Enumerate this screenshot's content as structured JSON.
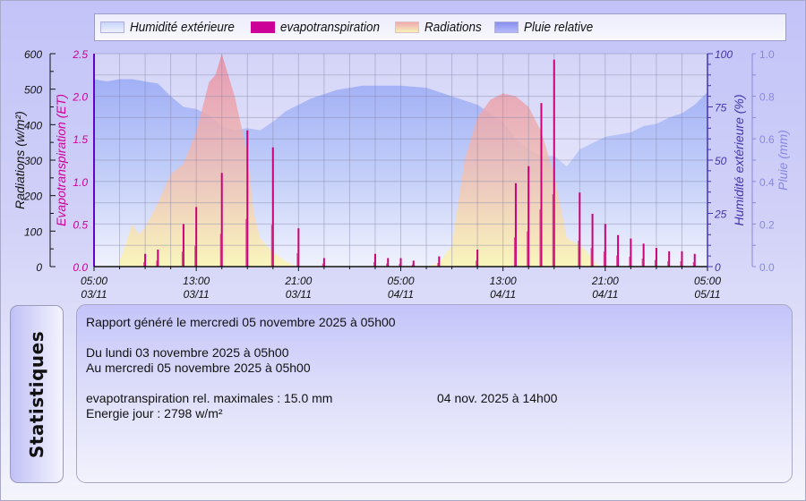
{
  "legend": {
    "items": [
      {
        "label": "Humidité extérieure",
        "color": "#dfe6fb"
      },
      {
        "label": "evapotranspiration",
        "color": "#cc0099"
      },
      {
        "label": "Radiations",
        "color": "#f2c8b0"
      },
      {
        "label": "Pluie relative",
        "color": "#9aa4f4"
      }
    ]
  },
  "axes": {
    "left1": {
      "label": "Radiations (w/m²)",
      "ticks": [
        "0",
        "100",
        "200",
        "300",
        "400",
        "500",
        "600"
      ],
      "color": "#111111"
    },
    "left2": {
      "label": "Evapotranspiration (ET)",
      "ticks": [
        "0.0",
        "0.5",
        "1.0",
        "1.5",
        "2.0",
        "2.5"
      ],
      "color": "#cc0099"
    },
    "right1": {
      "label": "Humidité extérieure (%)",
      "ticks": [
        "0",
        "25",
        "50",
        "75",
        "100"
      ],
      "color": "#4433aa"
    },
    "right2": {
      "label": "Pluie (mm)",
      "ticks": [
        "0.0",
        "0.2",
        "0.4",
        "0.6",
        "0.8",
        "1.0"
      ],
      "color": "#8888e0"
    },
    "x": {
      "ticks": [
        {
          "time": "05:00",
          "date": "03/11"
        },
        {
          "time": "13:00",
          "date": "03/11"
        },
        {
          "time": "21:00",
          "date": "03/11"
        },
        {
          "time": "05:00",
          "date": "04/11"
        },
        {
          "time": "13:00",
          "date": "04/11"
        },
        {
          "time": "21:00",
          "date": "04/11"
        },
        {
          "time": "05:00",
          "date": "05/11"
        }
      ]
    }
  },
  "chart_data": {
    "type": "area",
    "title": "",
    "x_unit": "hours since 03/11 05:00",
    "xlim": [
      0,
      48
    ],
    "legend_position": "top",
    "grid": true,
    "series": [
      {
        "name": "Humidité extérieure",
        "axis": "right1",
        "unit": "%",
        "ylim": [
          0,
          100
        ],
        "x": [
          0,
          1,
          2,
          3,
          4,
          5,
          6,
          7,
          8,
          9,
          10,
          11,
          12,
          13,
          14,
          15,
          16,
          17,
          18,
          19,
          20,
          21,
          22,
          24,
          26,
          28,
          30,
          31,
          32,
          33,
          34,
          35,
          36,
          37,
          38,
          39,
          40,
          41,
          42,
          43,
          44,
          45,
          46,
          47,
          48
        ],
        "values": [
          88,
          87,
          88,
          88,
          87,
          86,
          80,
          75,
          74,
          71,
          66,
          64,
          65,
          64,
          68,
          73,
          76,
          79,
          81,
          83,
          84,
          85,
          85,
          85,
          84,
          80,
          76,
          72,
          68,
          60,
          55,
          52,
          52,
          47,
          55,
          58,
          61,
          62,
          63,
          66,
          67,
          70,
          72,
          76,
          82
        ]
      },
      {
        "name": "evapotranspiration",
        "axis": "left2",
        "unit": "ET",
        "ylim": [
          0,
          2.5
        ],
        "x": [
          4,
          5,
          7,
          8,
          10,
          12,
          14,
          16,
          18,
          22,
          23,
          24,
          25,
          27,
          30,
          33,
          34,
          35,
          36,
          38,
          39,
          40,
          41,
          42,
          43,
          44,
          45,
          46,
          47
        ],
        "values": [
          0.15,
          0.2,
          0.5,
          0.7,
          1.1,
          1.6,
          1.4,
          0.45,
          0.1,
          0.15,
          0.1,
          0.1,
          0.07,
          0.12,
          0.2,
          0.98,
          1.18,
          1.92,
          2.43,
          0.87,
          0.62,
          0.5,
          0.37,
          0.33,
          0.27,
          0.22,
          0.18,
          0.18,
          0.15
        ]
      },
      {
        "name": "Radiations",
        "axis": "left1",
        "unit": "w/m²",
        "ylim": [
          0,
          600
        ],
        "x": [
          2,
          3,
          3.5,
          4,
          5,
          6,
          7,
          8,
          9,
          9.5,
          10,
          11,
          12,
          12.5,
          13,
          14,
          15,
          15.5,
          16,
          26,
          27,
          28,
          29,
          30,
          31,
          32,
          33,
          34,
          35,
          36,
          37,
          38,
          38.5,
          39,
          39.5
        ],
        "values": [
          15,
          120,
          90,
          110,
          180,
          260,
          290,
          380,
          520,
          540,
          600,
          480,
          320,
          150,
          80,
          40,
          15,
          5,
          0,
          0,
          10,
          60,
          300,
          420,
          470,
          488,
          480,
          450,
          380,
          260,
          80,
          60,
          45,
          20,
          0
        ]
      },
      {
        "name": "Pluie relative",
        "axis": "right2",
        "unit": "mm",
        "ylim": [
          0,
          1
        ],
        "values": []
      }
    ]
  },
  "stats": {
    "tab_label": "Statistiques",
    "generated": "Rapport généré le mercredi 05 novembre 2025 à 05h00",
    "from": "Du lundi 03 novembre 2025 à 05h00",
    "to": "Au mercredi 05 novembre 2025 à 05h00",
    "et_max_label": "evapotranspiration rel. maximales : 15.0 mm",
    "et_max_date": "04 nov. 2025 à 14h00",
    "energy": "Energie jour : 2798 w/m²"
  }
}
